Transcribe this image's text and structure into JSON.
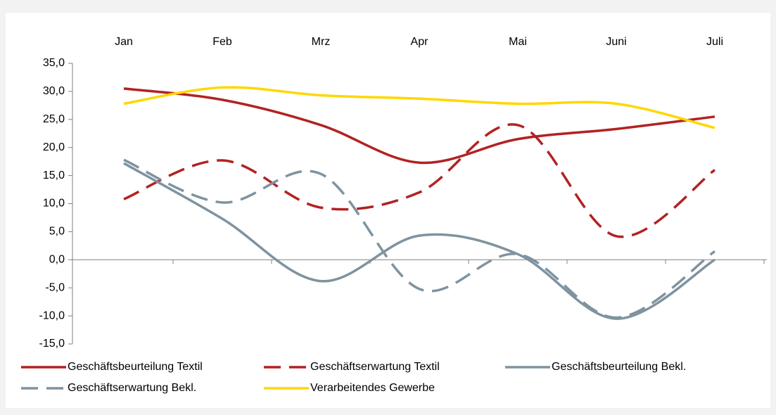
{
  "chart_data": {
    "type": "line",
    "categories": [
      "Jan",
      "Feb",
      "Mrz",
      "Apr",
      "Mai",
      "Juni",
      "Juli"
    ],
    "series": [
      {
        "name": "Geschäftsbeurteilung Textil",
        "color": "#b22222",
        "dash": false,
        "values": [
          30.5,
          28.5,
          24.0,
          17.3,
          21.5,
          23.3,
          25.5
        ]
      },
      {
        "name": "Geschäftserwartung Textil",
        "color": "#b22222",
        "dash": true,
        "values": [
          10.8,
          17.7,
          9.3,
          12.0,
          24.0,
          4.2,
          16.0
        ]
      },
      {
        "name": "Geschäftsbeurteilung Bekl.",
        "color": "#7f939f",
        "dash": false,
        "values": [
          17.2,
          7.3,
          -3.8,
          4.3,
          1.0,
          -10.5,
          0.0
        ]
      },
      {
        "name": "Geschäftserwartung Bekl.",
        "color": "#7f939f",
        "dash": true,
        "values": [
          17.8,
          10.2,
          15.3,
          -5.2,
          1.0,
          -10.3,
          1.5
        ]
      },
      {
        "name": "Verarbeitendes Gewerbe",
        "color": "#ffd700",
        "dash": false,
        "values": [
          27.8,
          30.7,
          29.3,
          28.7,
          27.8,
          27.8,
          23.5
        ]
      }
    ],
    "ylim": [
      -15,
      35
    ],
    "yticks": [
      {
        "value": -15,
        "label": "-15,0"
      },
      {
        "value": -10,
        "label": "-10,0"
      },
      {
        "value": -5,
        "label": "-5,0"
      },
      {
        "value": 0,
        "label": "0,0"
      },
      {
        "value": 5,
        "label": "5,0"
      },
      {
        "value": 10,
        "label": "10,0"
      },
      {
        "value": 15,
        "label": "15,0"
      },
      {
        "value": 20,
        "label": "20,0"
      },
      {
        "value": 25,
        "label": "25,0"
      },
      {
        "value": 30,
        "label": "30,0"
      },
      {
        "value": 35,
        "label": "35,0"
      }
    ]
  }
}
